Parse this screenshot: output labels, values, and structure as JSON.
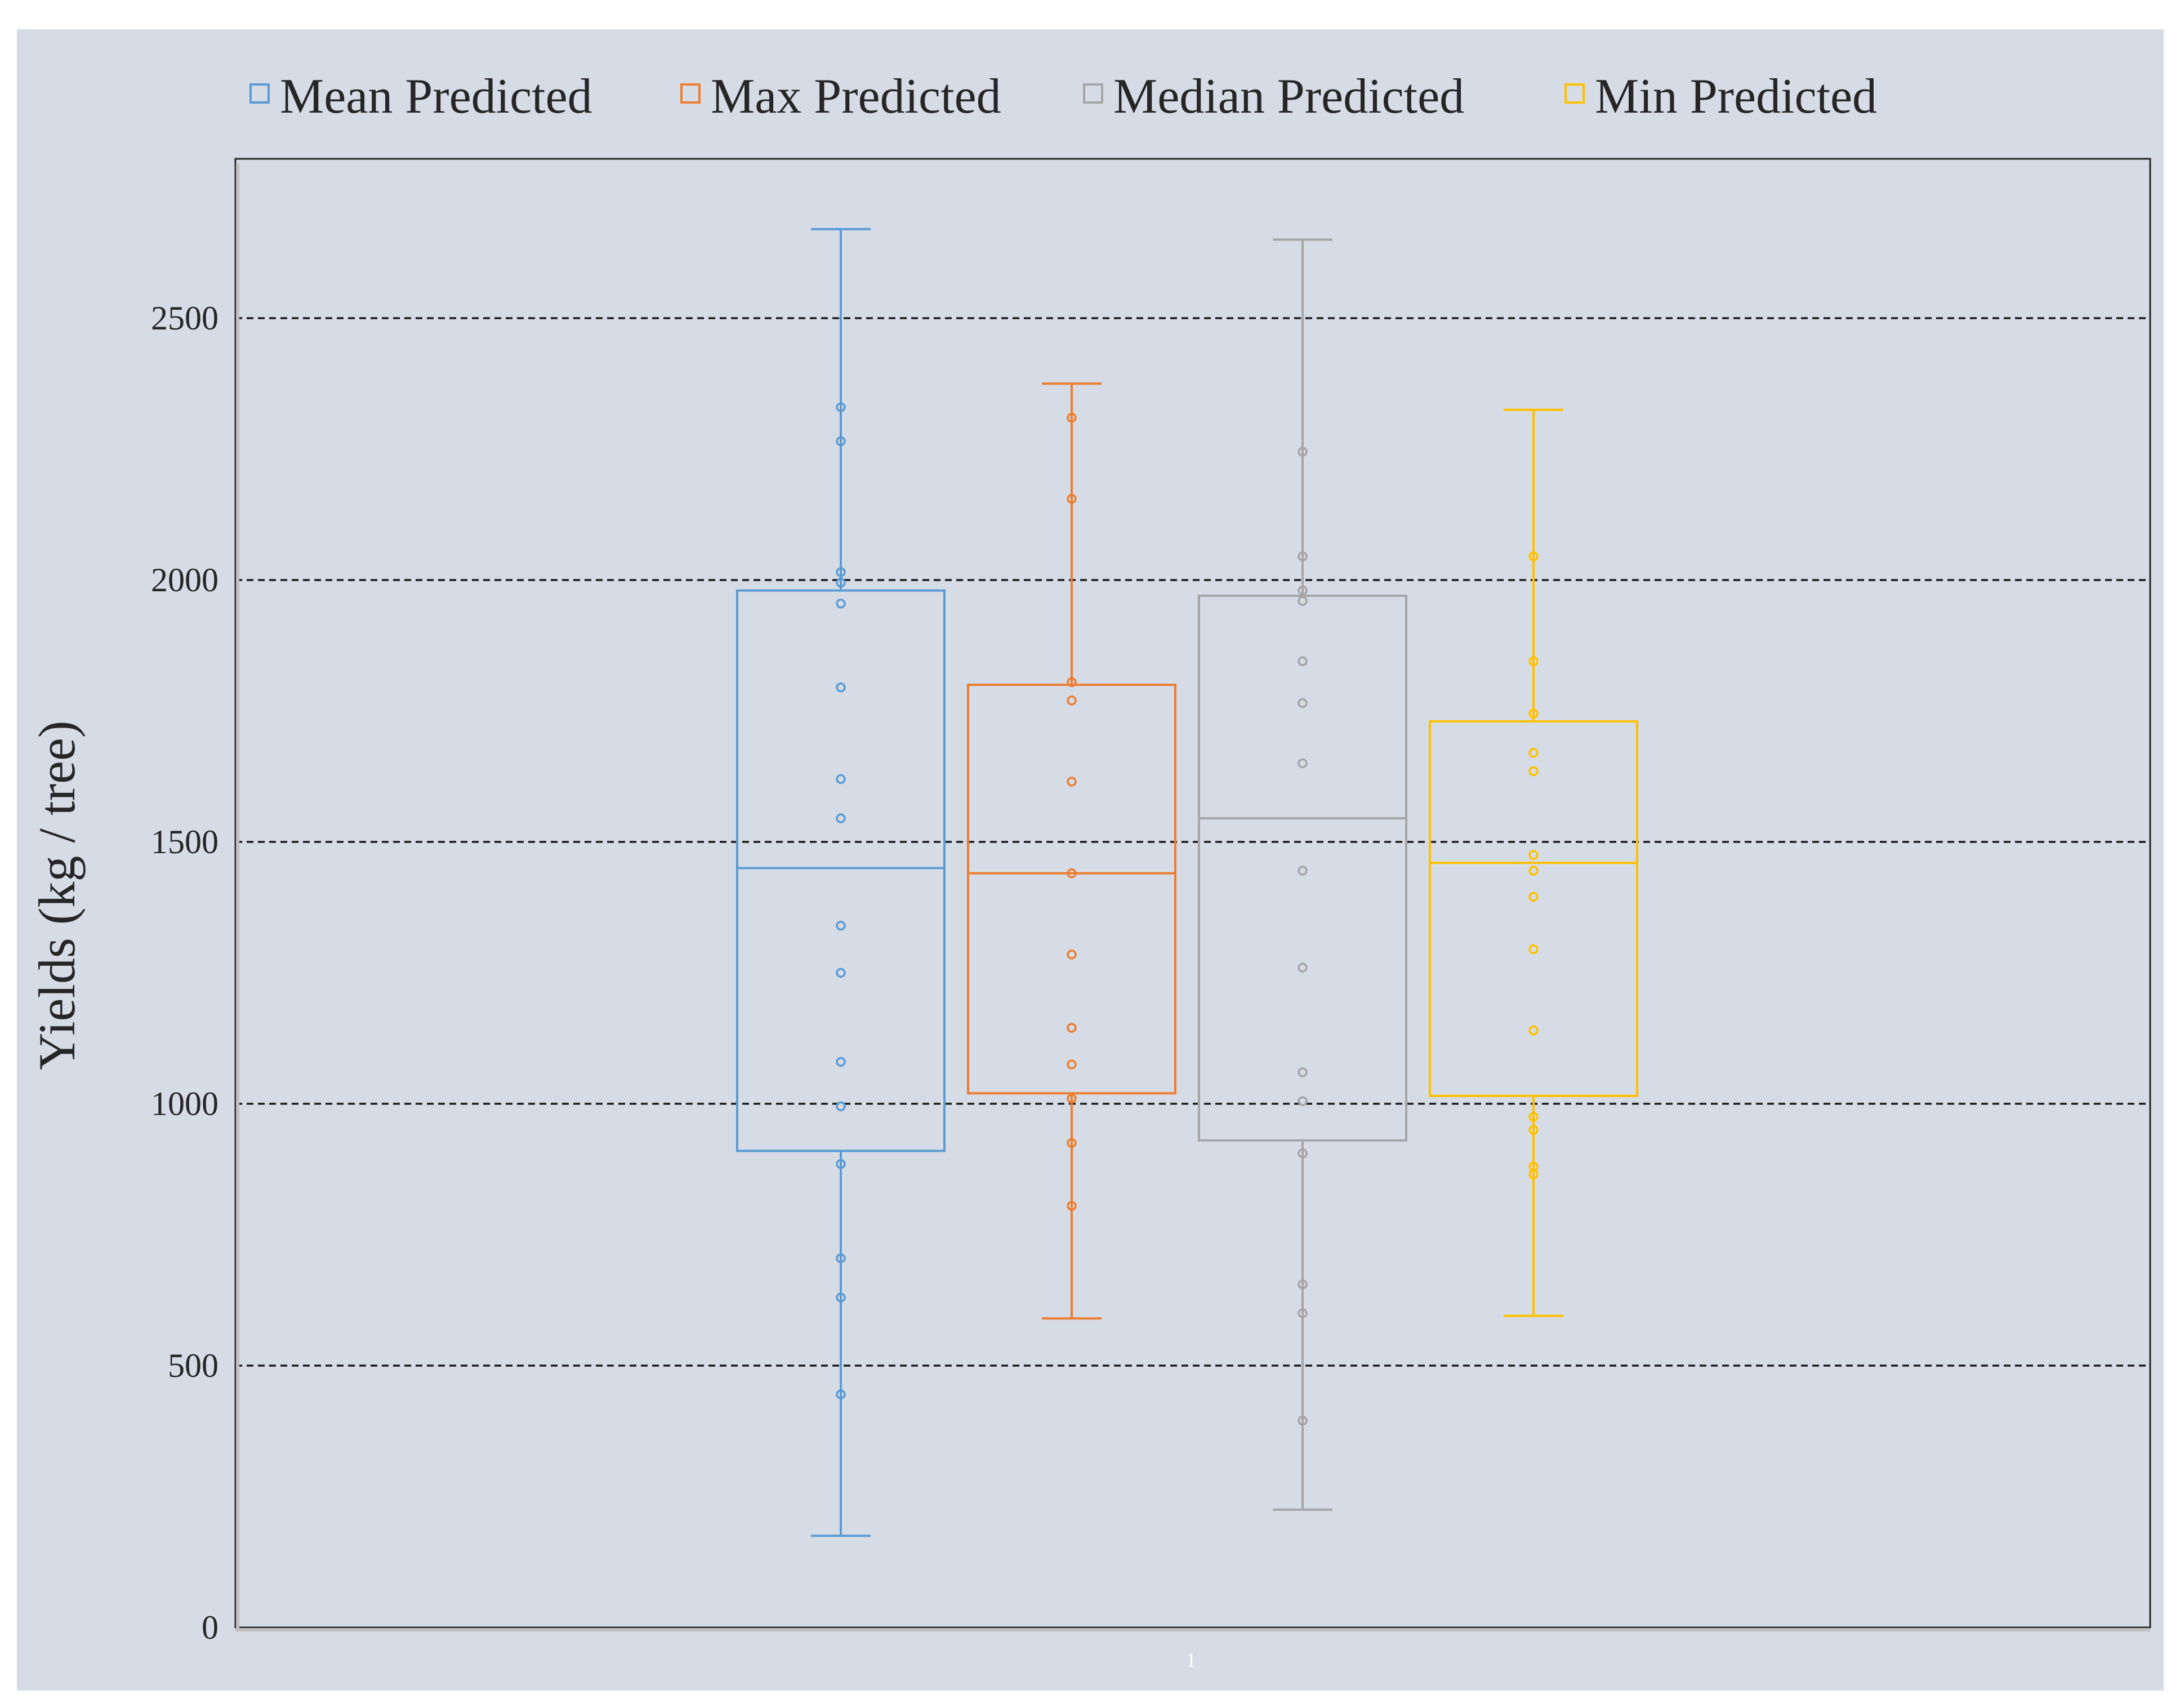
{
  "chart_data": {
    "type": "box",
    "ylabel": "Yields (kg / tree)",
    "xlabel": "",
    "x_tick_labels": [
      "1"
    ],
    "ylim": [
      0,
      2800
    ],
    "y_ticks": [
      0,
      500,
      1000,
      1500,
      2000,
      2500
    ],
    "grid": "horizontal dashed",
    "legend_position": "top",
    "background": "#d6dce5",
    "series": [
      {
        "name": "Mean Predicted",
        "color": "#5b9bd5",
        "whisker_min": 175,
        "q1": 910,
        "median": 1450,
        "q3": 1980,
        "whisker_max": 2670,
        "points": [
          445,
          630,
          705,
          885,
          995,
          1080,
          1250,
          1340,
          1545,
          1620,
          1795,
          1955,
          1995,
          2015,
          2265,
          2330
        ]
      },
      {
        "name": "Max Predicted",
        "color": "#ed7d31",
        "whisker_min": 590,
        "q1": 1020,
        "median": 1440,
        "q3": 1800,
        "whisker_max": 2375,
        "points": [
          805,
          925,
          1010,
          1075,
          1145,
          1285,
          1440,
          1615,
          1770,
          1805,
          2155,
          2310
        ]
      },
      {
        "name": "Median Predicted",
        "color": "#a5a5a5",
        "whisker_min": 225,
        "q1": 930,
        "median": 1545,
        "q3": 1970,
        "whisker_max": 2650,
        "points": [
          395,
          600,
          655,
          905,
          1005,
          1060,
          1260,
          1445,
          1650,
          1765,
          1845,
          1960,
          1980,
          2045,
          2245
        ]
      },
      {
        "name": "Min Predicted",
        "color": "#ffc000",
        "whisker_min": 595,
        "q1": 1015,
        "median": 1460,
        "q3": 1730,
        "whisker_max": 2325,
        "points": [
          865,
          880,
          950,
          975,
          1140,
          1295,
          1395,
          1445,
          1475,
          1635,
          1670,
          1745,
          1845,
          2045
        ]
      }
    ]
  }
}
